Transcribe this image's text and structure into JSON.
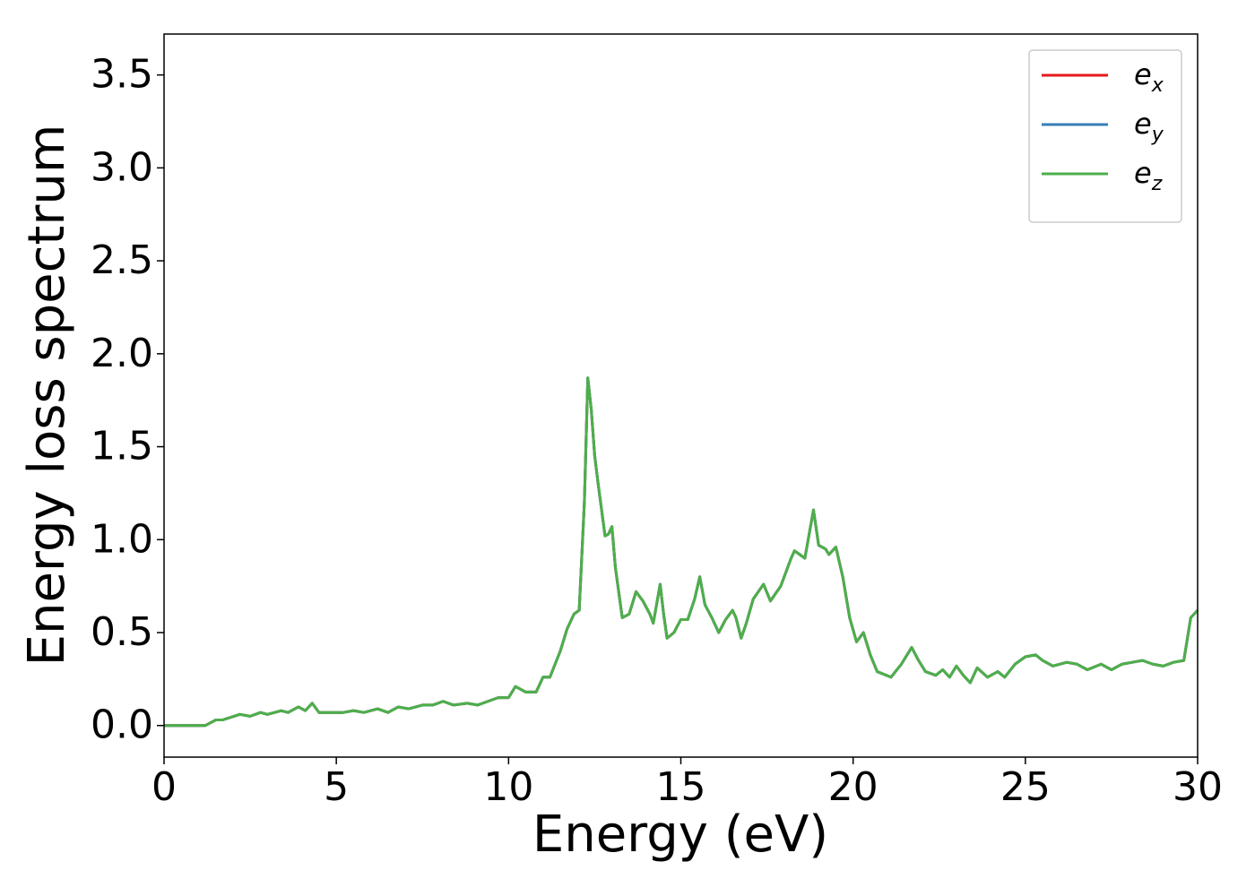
{
  "chart_data": {
    "type": "line",
    "xlabel": "Energy (eV)",
    "ylabel": "Energy loss spectrum",
    "xlim": [
      0,
      30
    ],
    "ylim": [
      -0.17,
      3.72
    ],
    "xticks": [
      0,
      5,
      10,
      15,
      20,
      25,
      30
    ],
    "yticks": [
      {
        "value": 0,
        "label": "0.0"
      },
      0.5,
      {
        "value": 1,
        "label": "1.0"
      },
      1.5,
      {
        "value": 2,
        "label": "2.0"
      },
      2.5,
      {
        "value": 3,
        "label": "3.0"
      },
      3.5
    ],
    "legend": "upper right",
    "x": [
      0,
      1.2,
      1.5,
      1.7,
      2.2,
      2.5,
      2.8,
      3.0,
      3.4,
      3.6,
      3.9,
      4.1,
      4.3,
      4.5,
      5.0,
      5.2,
      5.5,
      5.8,
      6.2,
      6.5,
      6.8,
      7.1,
      7.5,
      7.8,
      8.1,
      8.4,
      8.8,
      9.1,
      9.4,
      9.7,
      10.0,
      10.2,
      10.5,
      10.8,
      11.0,
      11.2,
      11.5,
      11.7,
      11.9,
      12.05,
      12.2,
      12.3,
      12.4,
      12.5,
      12.6,
      12.8,
      12.9,
      13.0,
      13.1,
      13.3,
      13.5,
      13.7,
      13.9,
      14.1,
      14.2,
      14.4,
      14.5,
      14.6,
      14.8,
      15.0,
      15.2,
      15.4,
      15.55,
      15.7,
      15.9,
      16.1,
      16.3,
      16.5,
      16.6,
      16.75,
      16.9,
      17.1,
      17.4,
      17.6,
      17.9,
      18.2,
      18.3,
      18.6,
      18.85,
      19.0,
      19.2,
      19.3,
      19.5,
      19.7,
      19.9,
      20.1,
      20.3,
      20.5,
      20.7,
      21.1,
      21.4,
      21.7,
      21.9,
      22.1,
      22.4,
      22.6,
      22.8,
      23.0,
      23.2,
      23.4,
      23.6,
      23.9,
      24.2,
      24.4,
      24.7,
      25.0,
      25.3,
      25.5,
      25.8,
      26.2,
      26.5,
      26.8,
      27.2,
      27.5,
      27.8,
      28.1,
      28.4,
      28.7,
      29.0,
      29.3,
      29.6,
      29.8,
      30.0
    ],
    "series": [
      {
        "name": "ex",
        "color": "#e41a1c",
        "values": [
          0,
          0,
          0.03,
          0.03,
          0.06,
          0.05,
          0.07,
          0.06,
          0.08,
          0.07,
          0.1,
          0.08,
          0.12,
          0.07,
          0.07,
          0.07,
          0.08,
          0.07,
          0.09,
          0.07,
          0.1,
          0.09,
          0.11,
          0.11,
          0.13,
          0.11,
          0.12,
          0.11,
          0.13,
          0.15,
          0.15,
          0.21,
          0.18,
          0.18,
          0.26,
          0.26,
          0.4,
          0.52,
          0.6,
          0.62,
          1.2,
          1.87,
          1.7,
          1.45,
          1.3,
          1.02,
          1.03,
          1.07,
          0.85,
          0.58,
          0.6,
          0.72,
          0.67,
          0.6,
          0.55,
          0.76,
          0.6,
          0.47,
          0.5,
          0.57,
          0.57,
          0.68,
          0.8,
          0.65,
          0.58,
          0.5,
          0.57,
          0.62,
          0.58,
          0.47,
          0.55,
          0.68,
          0.76,
          0.67,
          0.75,
          0.9,
          0.94,
          0.9,
          1.16,
          0.97,
          0.95,
          0.92,
          0.96,
          0.8,
          0.58,
          0.45,
          0.5,
          0.38,
          0.29,
          0.26,
          0.33,
          0.42,
          0.35,
          0.29,
          0.27,
          0.3,
          0.26,
          0.32,
          0.27,
          0.23,
          0.31,
          0.26,
          0.29,
          0.26,
          0.33,
          0.37,
          0.38,
          0.35,
          0.32,
          0.34,
          0.33,
          0.3,
          0.33,
          0.3,
          0.33,
          0.34,
          0.35,
          0.33,
          0.32,
          0.34,
          0.35,
          0.58,
          0.62
        ]
      },
      {
        "name": "ey",
        "color": "#377eb8",
        "values": [
          0,
          0,
          0.03,
          0.03,
          0.06,
          0.05,
          0.07,
          0.06,
          0.08,
          0.07,
          0.1,
          0.08,
          0.12,
          0.07,
          0.07,
          0.07,
          0.08,
          0.07,
          0.09,
          0.07,
          0.1,
          0.09,
          0.11,
          0.11,
          0.13,
          0.11,
          0.12,
          0.11,
          0.13,
          0.15,
          0.15,
          0.21,
          0.18,
          0.18,
          0.26,
          0.26,
          0.4,
          0.52,
          0.6,
          0.62,
          1.2,
          1.87,
          1.7,
          1.45,
          1.3,
          1.02,
          1.03,
          1.07,
          0.85,
          0.58,
          0.6,
          0.72,
          0.67,
          0.6,
          0.55,
          0.76,
          0.6,
          0.47,
          0.5,
          0.57,
          0.57,
          0.68,
          0.8,
          0.65,
          0.58,
          0.5,
          0.57,
          0.62,
          0.58,
          0.47,
          0.55,
          0.68,
          0.76,
          0.67,
          0.75,
          0.9,
          0.94,
          0.9,
          1.16,
          0.97,
          0.95,
          0.92,
          0.96,
          0.8,
          0.58,
          0.45,
          0.5,
          0.38,
          0.29,
          0.26,
          0.33,
          0.42,
          0.35,
          0.29,
          0.27,
          0.3,
          0.26,
          0.32,
          0.27,
          0.23,
          0.31,
          0.26,
          0.29,
          0.26,
          0.33,
          0.37,
          0.38,
          0.35,
          0.32,
          0.34,
          0.33,
          0.3,
          0.33,
          0.3,
          0.33,
          0.34,
          0.35,
          0.33,
          0.32,
          0.34,
          0.35,
          0.58,
          0.62
        ]
      },
      {
        "name": "ez",
        "color": "#4daf4a",
        "values": [
          0,
          0,
          0.03,
          0.03,
          0.06,
          0.05,
          0.07,
          0.06,
          0.08,
          0.07,
          0.1,
          0.08,
          0.12,
          0.07,
          0.07,
          0.07,
          0.08,
          0.07,
          0.09,
          0.07,
          0.1,
          0.09,
          0.11,
          0.11,
          0.13,
          0.11,
          0.12,
          0.11,
          0.13,
          0.15,
          0.15,
          0.21,
          0.18,
          0.18,
          0.26,
          0.26,
          0.4,
          0.52,
          0.6,
          0.62,
          1.2,
          1.87,
          1.7,
          1.45,
          1.3,
          1.02,
          1.03,
          1.07,
          0.85,
          0.58,
          0.6,
          0.72,
          0.67,
          0.6,
          0.55,
          0.76,
          0.6,
          0.47,
          0.5,
          0.57,
          0.57,
          0.68,
          0.8,
          0.65,
          0.58,
          0.5,
          0.57,
          0.62,
          0.58,
          0.47,
          0.55,
          0.68,
          0.76,
          0.67,
          0.75,
          0.9,
          0.94,
          0.9,
          1.16,
          0.97,
          0.95,
          0.92,
          0.96,
          0.8,
          0.58,
          0.45,
          0.5,
          0.38,
          0.29,
          0.26,
          0.33,
          0.42,
          0.35,
          0.29,
          0.27,
          0.3,
          0.26,
          0.32,
          0.27,
          0.23,
          0.31,
          0.26,
          0.29,
          0.26,
          0.33,
          0.37,
          0.38,
          0.35,
          0.32,
          0.34,
          0.33,
          0.3,
          0.33,
          0.3,
          0.33,
          0.34,
          0.35,
          0.33,
          0.32,
          0.34,
          0.35,
          0.58,
          0.62
        ]
      }
    ]
  }
}
